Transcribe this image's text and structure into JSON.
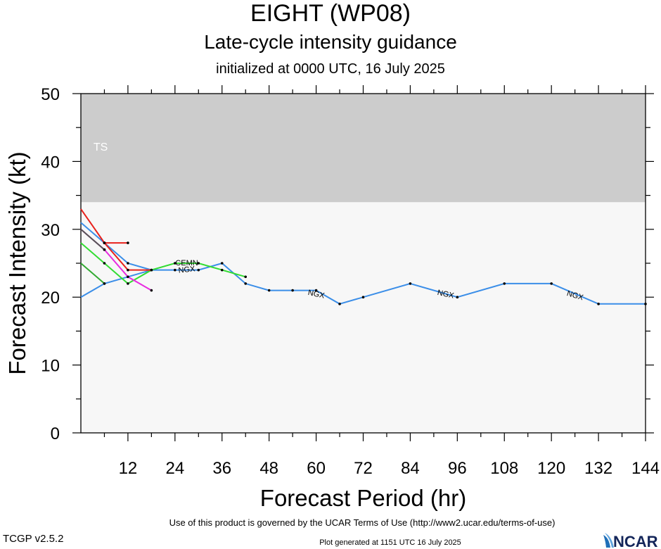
{
  "header": {
    "title": "EIGHT (WP08)",
    "subtitle": "Late-cycle intensity guidance",
    "initialized": "initialized at 0000 UTC, 16 July 2025"
  },
  "footer": {
    "terms": "Use of this product is governed by the UCAR Terms of Use (http://www2.ucar.edu/terms-of-use)",
    "version": "TCGP v2.5.2",
    "generated": "Plot generated at 1151 UTC   16 July 2025",
    "logo_text": "NCAR"
  },
  "chart_data": {
    "type": "line",
    "xlabel": "Forecast Period (hr)",
    "ylabel": "Forecast Intensity (kt)",
    "xlim": [
      0,
      144
    ],
    "ylim": [
      0,
      50
    ],
    "xticks": [
      "12",
      "24",
      "36",
      "48",
      "60",
      "72",
      "84",
      "96",
      "108",
      "120",
      "132",
      "144"
    ],
    "yticks": [
      "0",
      "10",
      "20",
      "30",
      "40",
      "50"
    ],
    "bands": [
      {
        "label": "",
        "from": 0,
        "to": 34,
        "color": "#f7f7f7"
      },
      {
        "label": "TS",
        "from": 34,
        "to": 64,
        "color": "#cccccc"
      }
    ],
    "series": [
      {
        "name": "NGX",
        "color": "#3b8ee8",
        "points": [
          [
            0,
            20
          ],
          [
            6,
            22
          ],
          [
            12,
            23
          ],
          [
            18,
            24
          ],
          [
            24,
            24
          ],
          [
            30,
            24
          ],
          [
            36,
            25
          ],
          [
            42,
            22
          ],
          [
            48,
            21
          ],
          [
            54,
            21
          ],
          [
            60,
            21
          ],
          [
            66,
            19
          ],
          [
            72,
            20
          ],
          [
            84,
            22
          ],
          [
            96,
            20
          ],
          [
            108,
            22
          ],
          [
            120,
            22
          ],
          [
            132,
            19
          ],
          [
            144,
            19
          ]
        ],
        "labels": [
          [
            27,
            24,
            -6
          ],
          [
            60,
            20.4,
            12
          ],
          [
            93,
            20.4,
            12
          ],
          [
            126,
            20.2,
            16
          ]
        ]
      },
      {
        "name": "",
        "color": "#3b8ee8",
        "points": [
          [
            0,
            31
          ],
          [
            6,
            28
          ],
          [
            12,
            25
          ],
          [
            18,
            24
          ]
        ]
      },
      {
        "name": "CEMN",
        "color": "#32dc32",
        "points": [
          [
            0,
            28
          ],
          [
            6,
            25
          ],
          [
            12,
            22
          ],
          [
            18,
            24
          ],
          [
            24,
            25
          ],
          [
            30,
            25
          ],
          [
            36,
            24
          ],
          [
            42,
            23
          ]
        ],
        "labels": [
          [
            27,
            25,
            0
          ]
        ]
      },
      {
        "name": "",
        "color": "#33aa33",
        "points": [
          [
            0,
            25
          ],
          [
            6,
            22
          ]
        ]
      },
      {
        "name": "",
        "color": "#e8221c",
        "points": [
          [
            0,
            33
          ],
          [
            6,
            28
          ],
          [
            12,
            28
          ]
        ]
      },
      {
        "name": "",
        "color": "#e8221c",
        "points": [
          [
            6,
            28
          ],
          [
            12,
            24
          ],
          [
            18,
            24
          ]
        ]
      },
      {
        "name": "",
        "color": "#e82ce0",
        "points": [
          [
            0,
            30
          ],
          [
            6,
            27
          ],
          [
            12,
            23
          ],
          [
            18,
            21
          ]
        ]
      },
      {
        "name": "",
        "color": "#555555",
        "points": [
          [
            0,
            30
          ],
          [
            6,
            27
          ]
        ]
      }
    ]
  }
}
